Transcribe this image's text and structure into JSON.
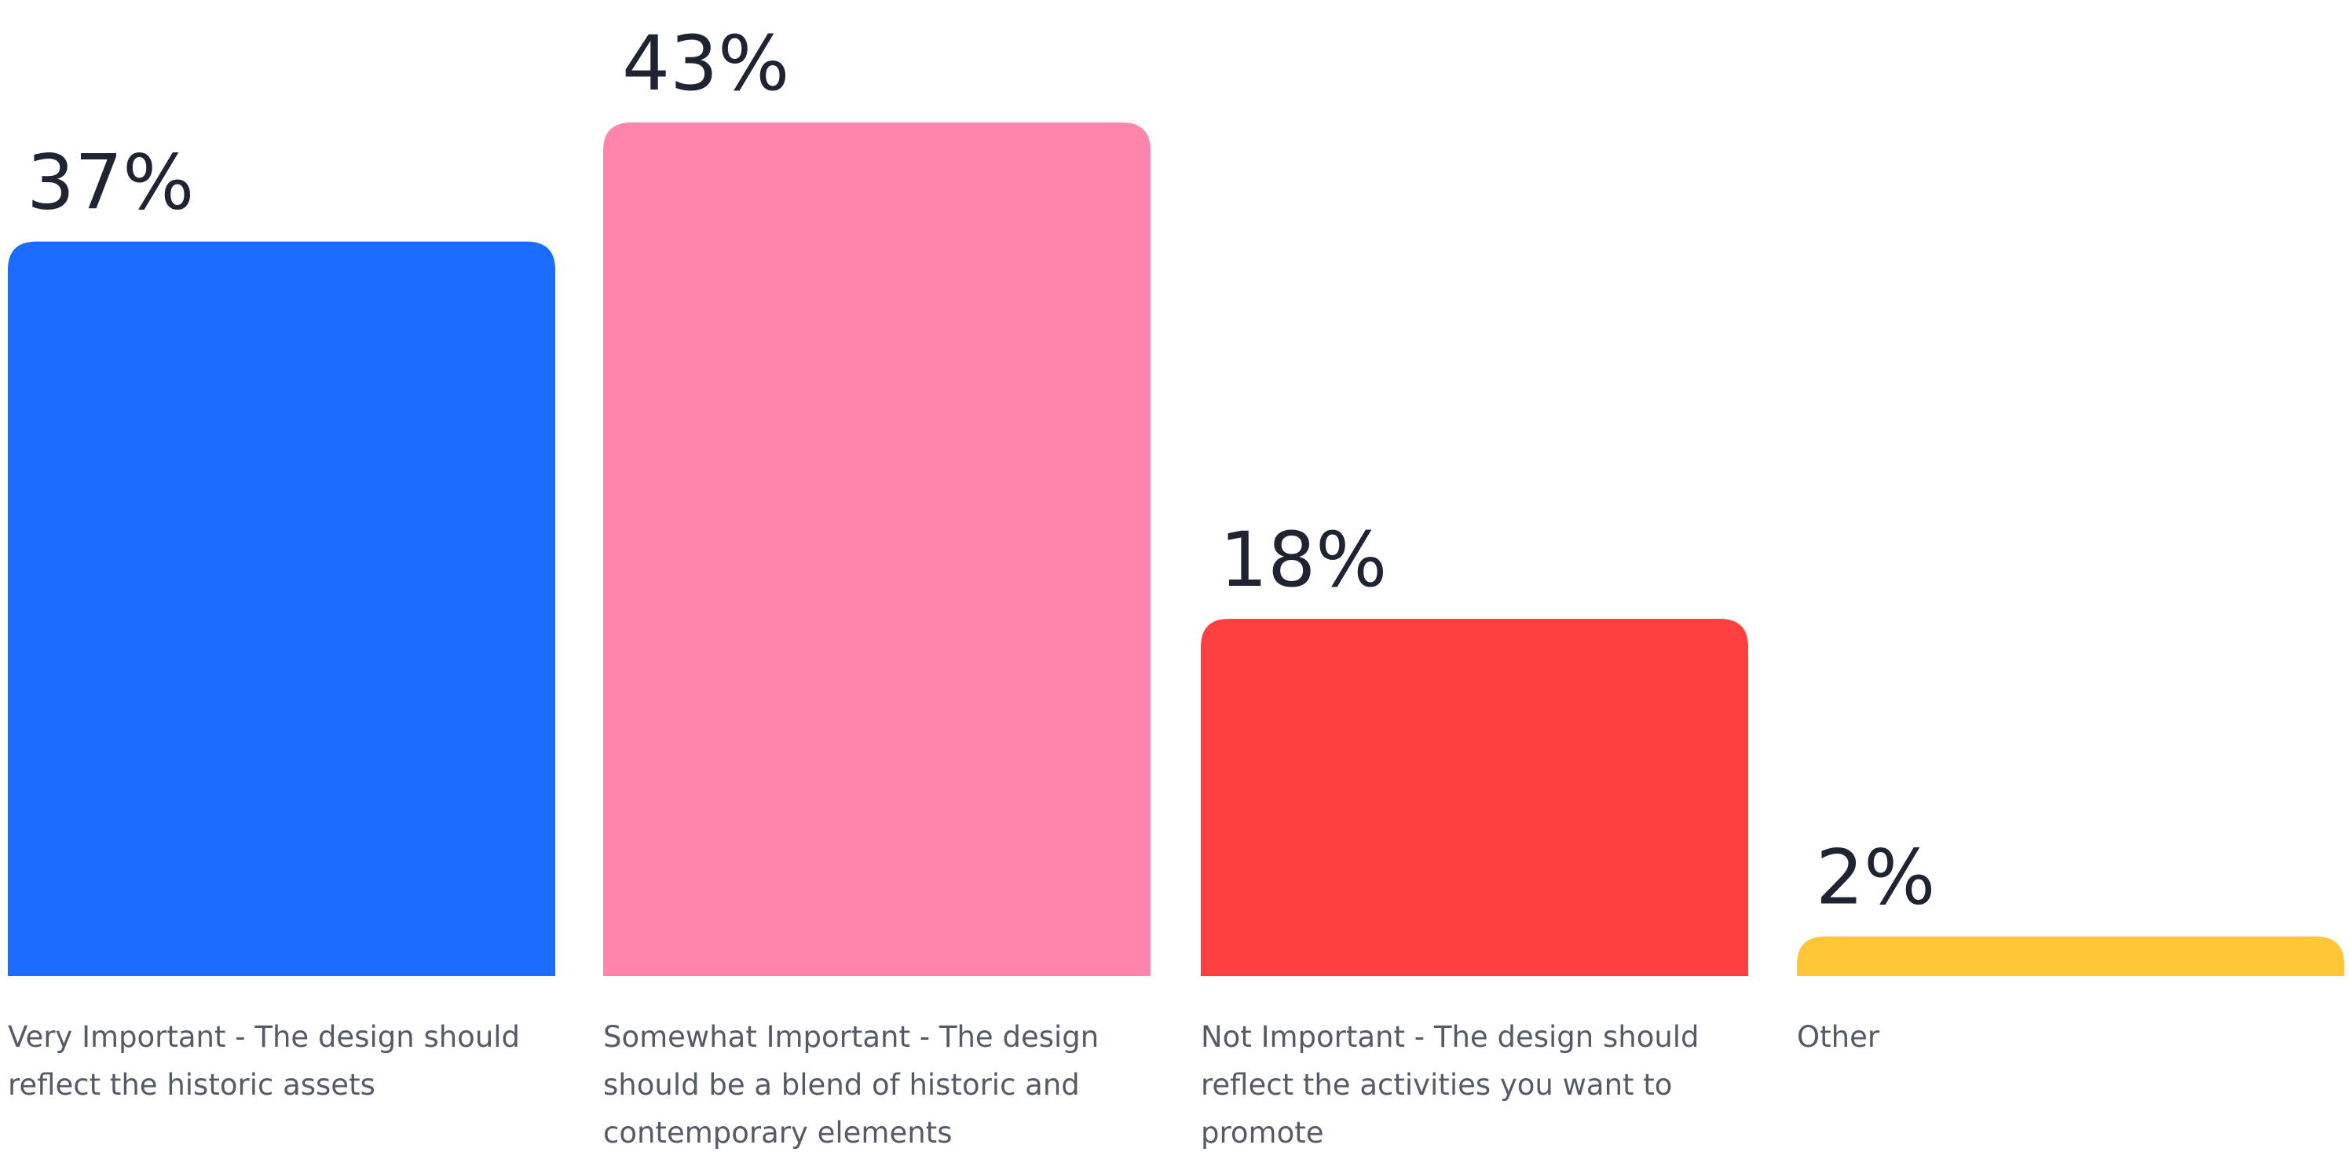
{
  "chart_data": {
    "type": "bar",
    "categories": [
      "Very Important - The design should reflect the historic assets",
      "Somewhat Important - The design should be a blend of historic and contemporary elements",
      "Not Important - The design should reflect the activities you want to promote",
      "Other"
    ],
    "values": [
      37,
      43,
      18,
      2
    ],
    "value_labels": [
      "37%",
      "43%",
      "18%",
      "2%"
    ],
    "colors": [
      "#1c6bff",
      "#ff85ad",
      "#ff4040",
      "#ffc638"
    ],
    "title": "",
    "xlabel": "",
    "ylabel": "",
    "ylim": [
      0,
      43
    ],
    "grid": false,
    "legend": "none"
  },
  "labels": {
    "cat0": [
      "Very Important - The design should",
      "reflect the historic assets"
    ],
    "cat1": [
      "Somewhat Important - The design",
      "should be a blend of historic and",
      "contemporary elements"
    ],
    "cat2": [
      "Not Important - The design should",
      "reflect the activities you want to",
      "promote"
    ],
    "cat3": [
      "Other"
    ]
  }
}
